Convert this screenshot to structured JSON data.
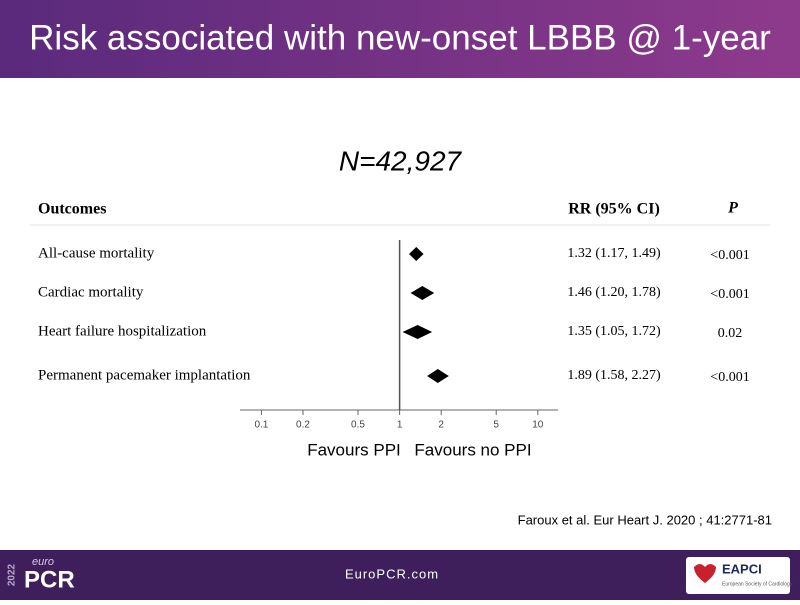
{
  "header": {
    "title": "Risk associated with new-onset LBBB @ 1-year"
  },
  "chart_data": {
    "type": "forest",
    "title": "N=42,927",
    "column_headers": [
      "Outcomes",
      "RR (95% CI)",
      "P"
    ],
    "categories": [
      "All-cause mortality",
      "Cardiac mortality",
      "Heart failure hospitalization",
      "Permanent pacemaker implantation"
    ],
    "values": [
      1.32,
      1.46,
      1.35,
      1.89
    ],
    "lower": [
      1.17,
      1.2,
      1.05,
      1.58
    ],
    "upper": [
      1.49,
      1.78,
      1.72,
      2.27
    ],
    "value_labels": [
      "1.32 (1.17, 1.49)",
      "1.46 (1.20, 1.78)",
      "1.35 (1.05, 1.72)",
      "1.89 (1.58, 2.27)"
    ],
    "p_values": [
      "<0.001",
      "<0.001",
      "0.02",
      "<0.001"
    ],
    "xscale": "log",
    "xlim": [
      0.07,
      14
    ],
    "xticks": [
      0.1,
      0.2,
      0.5,
      1,
      2,
      5,
      10
    ],
    "reference_value": 1,
    "color": "#000000",
    "annotations": [
      "Favours PPI",
      "Favours no PPI"
    ]
  },
  "citation": "Faroux et al. Eur Heart J. 2020 ; 41:2771-81",
  "footer": {
    "year": "2022",
    "brand_small": "euro",
    "brand": "PCR",
    "url": "EuroPCR.com",
    "logo": "EAPCI",
    "logo_sub": "European Society of Cardiology"
  }
}
